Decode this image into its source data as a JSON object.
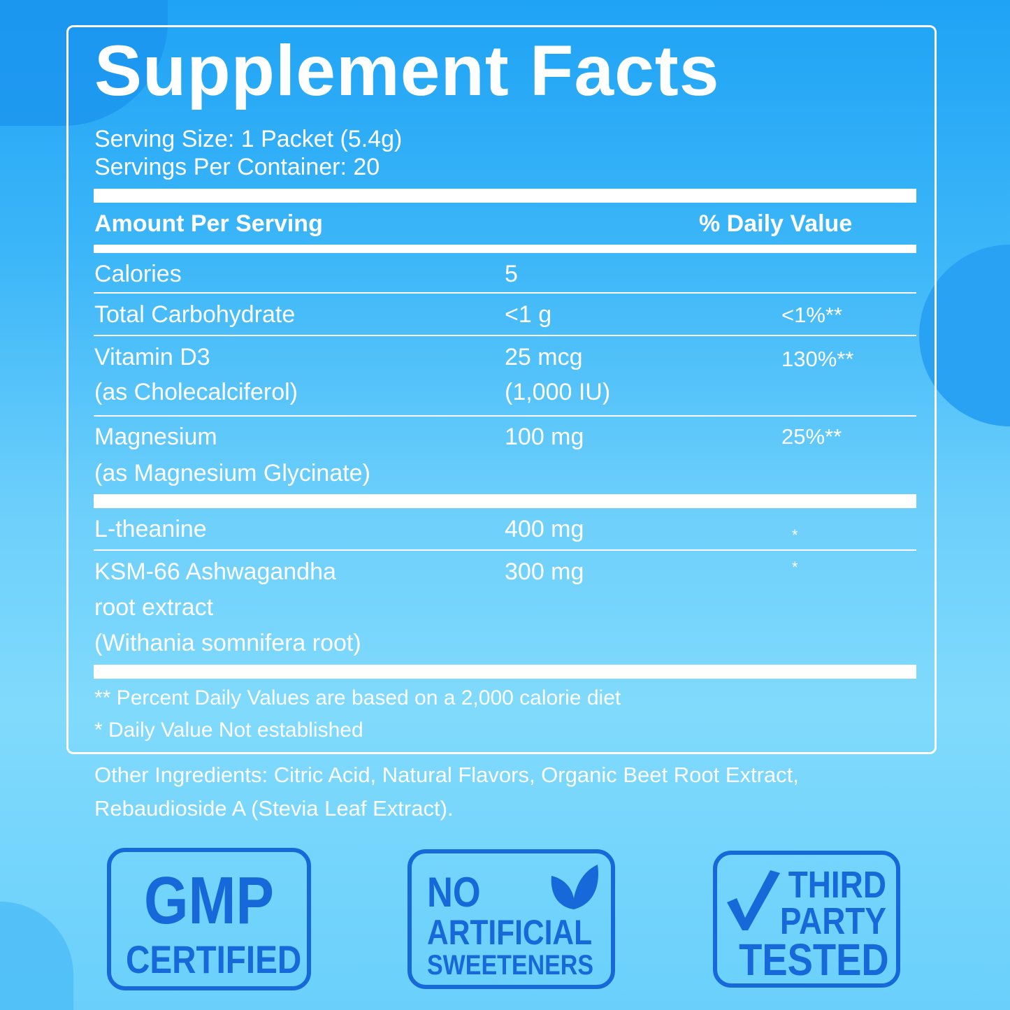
{
  "title": "Supplement Facts",
  "serving_size": "Serving Size: 1 Packet (5.4g)",
  "servings_per_container": "Servings Per Container: 20",
  "header": {
    "amount": "Amount Per Serving",
    "dv": "% Daily Value"
  },
  "rows": [
    {
      "name": [
        "Calories"
      ],
      "amount": [
        "5"
      ],
      "dv": ""
    },
    {
      "name": [
        "Total Carbohydrate"
      ],
      "amount": [
        "<1 g"
      ],
      "dv": "<1%**"
    },
    {
      "name": [
        "Vitamin D3",
        "(as Cholecalciferol)"
      ],
      "amount": [
        "25 mcg",
        "(1,000 IU)"
      ],
      "dv": "130%**"
    },
    {
      "name": [
        "Magnesium",
        "(as Magnesium Glycinate)"
      ],
      "amount": [
        "100 mg"
      ],
      "dv": "25%**"
    },
    {
      "name": [
        "L-theanine"
      ],
      "amount": [
        "400 mg"
      ],
      "dv": "*"
    },
    {
      "name": [
        "KSM-66 Ashwagandha",
        "root extract",
        "(Withania somnifera root)"
      ],
      "amount": [
        "300 mg"
      ],
      "dv": "*"
    }
  ],
  "footnotes": [
    "** Percent Daily Values are based on a 2,000 calorie diet",
    "* Daily Value Not established"
  ],
  "other_ingredients": [
    "Other Ingredients: Citric Acid, Natural Flavors, Organic Beet Root Extract,",
    "Rebaudioside A (Stevia Leaf Extract)."
  ],
  "badges": {
    "gmp": [
      "GMP",
      "CERTIFIED"
    ],
    "no_artificial": [
      "NO",
      "ARTIFICIAL",
      "SWEETENERS"
    ],
    "third_party": [
      "THIRD",
      "PARTY",
      "TESTED"
    ]
  },
  "colors": {
    "badge": "#1769d9",
    "text": "#ffffff"
  }
}
